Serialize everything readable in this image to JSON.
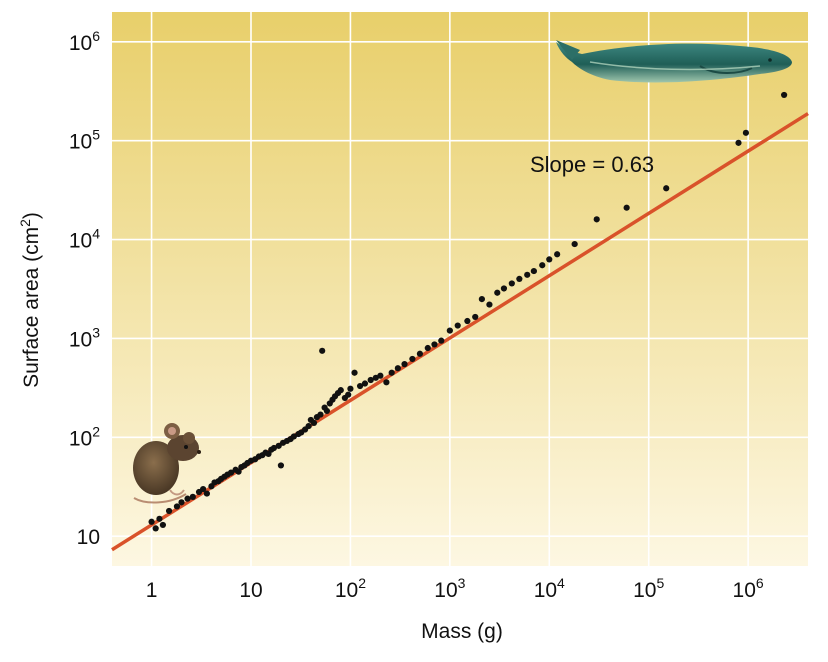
{
  "chart_data": {
    "type": "scatter",
    "scale": {
      "x": "log",
      "y": "log"
    },
    "xlabel": "Mass (g)",
    "ylabel": "Surface area (cm2)",
    "xlim": [
      0.4,
      4000000
    ],
    "ylim": [
      5,
      2000000
    ],
    "x_ticks": [
      {
        "base": "1",
        "exp": ""
      },
      {
        "base": "10",
        "exp": ""
      },
      {
        "base": "10",
        "exp": "2"
      },
      {
        "base": "10",
        "exp": "3"
      },
      {
        "base": "10",
        "exp": "4"
      },
      {
        "base": "10",
        "exp": "5"
      },
      {
        "base": "10",
        "exp": "6"
      }
    ],
    "x_tick_values": [
      1,
      10,
      100,
      1000,
      10000,
      100000,
      1000000
    ],
    "y_ticks": [
      {
        "base": "10",
        "exp": ""
      },
      {
        "base": "10",
        "exp": "2"
      },
      {
        "base": "10",
        "exp": "3"
      },
      {
        "base": "10",
        "exp": "4"
      },
      {
        "base": "10",
        "exp": "5"
      },
      {
        "base": "10",
        "exp": "6"
      }
    ],
    "y_tick_values": [
      10,
      100,
      1000,
      10000,
      100000,
      1000000
    ],
    "grid": true,
    "colors": {
      "background_top": "#e8cf6a",
      "background_bottom": "#fdf7e2",
      "grid": "#ffffff",
      "points": "#111111",
      "fit_line": "#d9522a"
    },
    "fit_line": {
      "slope": 0.63,
      "label": "Slope = 0.63",
      "x": [
        0.4,
        4000000
      ],
      "y": [
        7.3,
        188000
      ]
    },
    "icons": {
      "small_animal": "mouse-icon",
      "large_animal": "whale-icon"
    },
    "points": [
      [
        1.0,
        14
      ],
      [
        1.1,
        12
      ],
      [
        1.2,
        15
      ],
      [
        1.3,
        13
      ],
      [
        1.5,
        18
      ],
      [
        1.8,
        20
      ],
      [
        2.0,
        22
      ],
      [
        2.3,
        24
      ],
      [
        2.6,
        25
      ],
      [
        3.0,
        28
      ],
      [
        3.3,
        30
      ],
      [
        3.6,
        27
      ],
      [
        4.0,
        32
      ],
      [
        4.3,
        35
      ],
      [
        4.7,
        36
      ],
      [
        5.0,
        38
      ],
      [
        5.4,
        40
      ],
      [
        5.8,
        42
      ],
      [
        6.3,
        44
      ],
      [
        7.0,
        47
      ],
      [
        7.5,
        45
      ],
      [
        8.0,
        50
      ],
      [
        8.6,
        52
      ],
      [
        9.2,
        55
      ],
      [
        10,
        58
      ],
      [
        11,
        60
      ],
      [
        12,
        64
      ],
      [
        13,
        66
      ],
      [
        14,
        70
      ],
      [
        15,
        68
      ],
      [
        16,
        75
      ],
      [
        17,
        78
      ],
      [
        19,
        82
      ],
      [
        20,
        52
      ],
      [
        21,
        88
      ],
      [
        23,
        92
      ],
      [
        25,
        96
      ],
      [
        27,
        102
      ],
      [
        30,
        108
      ],
      [
        32,
        112
      ],
      [
        35,
        120
      ],
      [
        38,
        130
      ],
      [
        40,
        150
      ],
      [
        43,
        140
      ],
      [
        46,
        160
      ],
      [
        50,
        170
      ],
      [
        52,
        750
      ],
      [
        55,
        200
      ],
      [
        58,
        185
      ],
      [
        62,
        220
      ],
      [
        66,
        240
      ],
      [
        70,
        260
      ],
      [
        75,
        280
      ],
      [
        80,
        300
      ],
      [
        88,
        250
      ],
      [
        95,
        270
      ],
      [
        100,
        310
      ],
      [
        110,
        450
      ],
      [
        125,
        330
      ],
      [
        140,
        350
      ],
      [
        160,
        380
      ],
      [
        180,
        400
      ],
      [
        200,
        420
      ],
      [
        230,
        360
      ],
      [
        260,
        450
      ],
      [
        300,
        500
      ],
      [
        350,
        550
      ],
      [
        420,
        620
      ],
      [
        500,
        700
      ],
      [
        600,
        800
      ],
      [
        700,
        870
      ],
      [
        820,
        950
      ],
      [
        1000,
        1200
      ],
      [
        1200,
        1350
      ],
      [
        1500,
        1500
      ],
      [
        1800,
        1650
      ],
      [
        2100,
        2500
      ],
      [
        2500,
        2200
      ],
      [
        3000,
        2900
      ],
      [
        3500,
        3200
      ],
      [
        4200,
        3600
      ],
      [
        5000,
        4000
      ],
      [
        6000,
        4400
      ],
      [
        7000,
        4800
      ],
      [
        8500,
        5500
      ],
      [
        10000,
        6300
      ],
      [
        12000,
        7100
      ],
      [
        18000,
        9000
      ],
      [
        30000,
        16000
      ],
      [
        60000,
        21000
      ],
      [
        150000,
        33000
      ],
      [
        800000,
        95000
      ],
      [
        950000,
        120000
      ],
      [
        2300000,
        290000
      ]
    ]
  }
}
